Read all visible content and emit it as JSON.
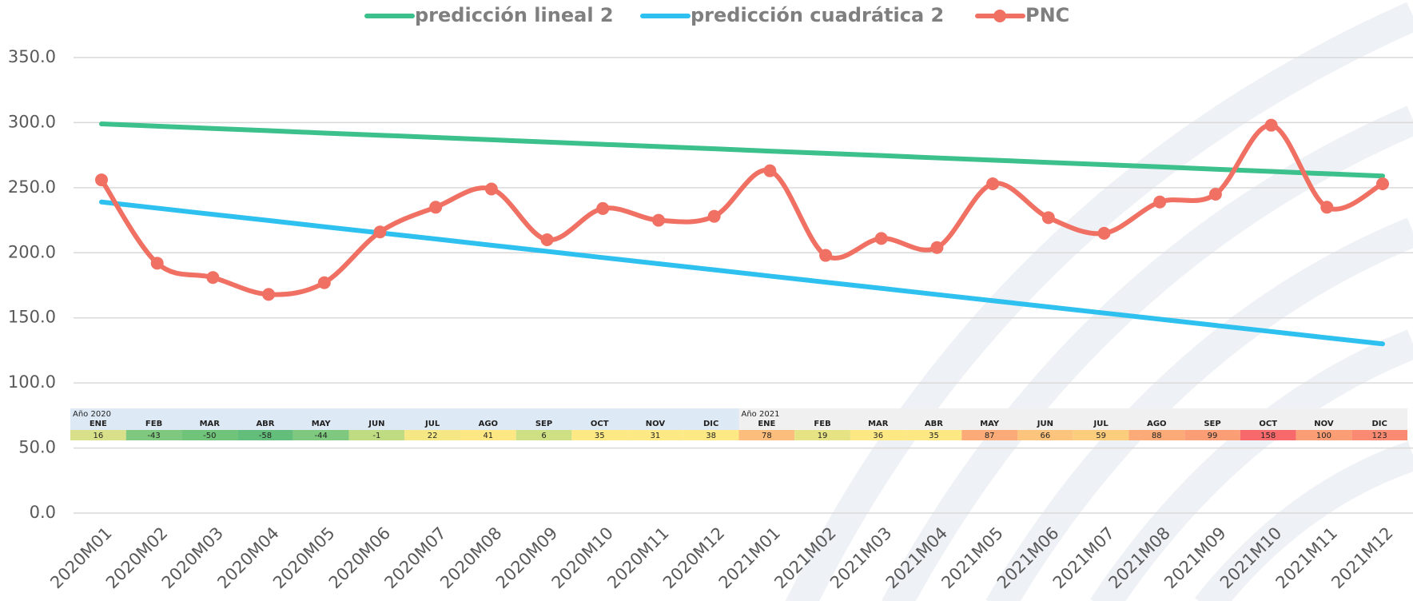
{
  "chart_data": {
    "type": "line",
    "categories": [
      "2020M01",
      "2020M02",
      "2020M03",
      "2020M04",
      "2020M05",
      "2020M06",
      "2020M07",
      "2020M08",
      "2020M09",
      "2020M10",
      "2020M11",
      "2020M12",
      "2021M01",
      "2021M02",
      "2021M03",
      "2021M04",
      "2021M05",
      "2021M06",
      "2021M07",
      "2021M08",
      "2021M09",
      "2021M10",
      "2021M11",
      "2021M12"
    ],
    "series": [
      {
        "name": "predicción lineal 2",
        "color": "#3cc08c",
        "smooth": false,
        "markers": false,
        "values": [
          299,
          297.3,
          295.5,
          293.8,
          292,
          290.3,
          288.6,
          286.8,
          285.1,
          283.3,
          281.6,
          279.9,
          278.1,
          276.4,
          274.7,
          272.9,
          271.2,
          269.4,
          267.7,
          266,
          264.2,
          262.5,
          260.7,
          259
        ]
      },
      {
        "name": "predicción cuadrática 2",
        "color": "#2ec1ef",
        "smooth": false,
        "markers": false,
        "values": [
          239,
          234.3,
          229.5,
          224.8,
          220,
          215.3,
          210.6,
          205.8,
          201.1,
          196.3,
          191.6,
          186.9,
          182.1,
          177.4,
          172.7,
          167.9,
          163.2,
          158.4,
          153.7,
          149,
          144.2,
          139.5,
          134.7,
          130
        ]
      },
      {
        "name": "PNC",
        "color": "#f07163",
        "smooth": true,
        "markers": true,
        "values": [
          256,
          192,
          181,
          168,
          177,
          216,
          235,
          249,
          210,
          234,
          225,
          228,
          263,
          198,
          211,
          204,
          253,
          227,
          215,
          239,
          245,
          298,
          235,
          253
        ]
      }
    ],
    "ylim": [
      0,
      350
    ],
    "yticks": [
      {
        "value": 0,
        "label": "0.0"
      },
      {
        "value": 50,
        "label": "50.0"
      },
      {
        "value": 100,
        "label": "100.0"
      },
      {
        "value": 150,
        "label": "150.0"
      },
      {
        "value": 200,
        "label": "200.0"
      },
      {
        "value": 250,
        "label": "250.0"
      },
      {
        "value": 300,
        "label": "300.0"
      },
      {
        "value": 350,
        "label": "350.0"
      }
    ],
    "grid": true,
    "legend": "top"
  },
  "table": {
    "groups": [
      {
        "title": "Año 2020",
        "background": "#dde9f5",
        "months": [
          "ENE",
          "FEB",
          "MAR",
          "ABR",
          "MAY",
          "JUN",
          "JUL",
          "AGO",
          "SEP",
          "OCT",
          "NOV",
          "DIC"
        ],
        "values": [
          16,
          -43,
          -50,
          -58,
          -44,
          -1,
          22,
          41,
          6,
          35,
          31,
          38
        ],
        "colors": [
          "#d9e08a",
          "#7ec97f",
          "#70c47a",
          "#63be7b",
          "#7ec97f",
          "#c0dc82",
          "#f5e784",
          "#ffe884",
          "#cde084",
          "#fee984",
          "#fee984",
          "#fee984"
        ]
      },
      {
        "title": "Año 2021",
        "background": "#f0f0f0",
        "months": [
          "ENE",
          "FEB",
          "MAR",
          "ABR",
          "MAY",
          "JUN",
          "JUL",
          "AGO",
          "SEP",
          "OCT",
          "NOV",
          "DIC"
        ],
        "values": [
          78,
          19,
          36,
          35,
          87,
          66,
          59,
          88,
          99,
          158,
          100,
          123
        ],
        "colors": [
          "#fdbd7c",
          "#e6e384",
          "#fde883",
          "#fde883",
          "#fcaa78",
          "#fdc47d",
          "#fdcd7e",
          "#fcaa78",
          "#fb9d75",
          "#f8696b",
          "#fb9d75",
          "#fa8b72"
        ]
      }
    ]
  }
}
